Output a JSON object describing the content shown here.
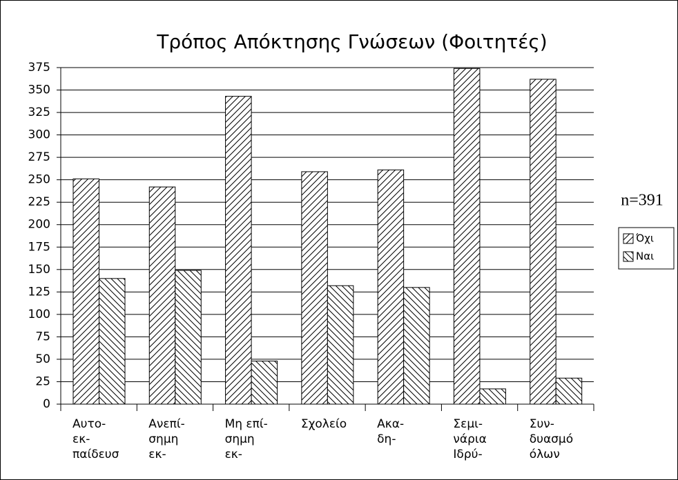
{
  "chart_data": {
    "type": "bar",
    "title": "Τρόπος Απόκτησης Γνώσεων (Φοιτητές)",
    "annotation": "n=391",
    "categories": [
      [
        "Αυτο-",
        "εκ-",
        "παίδευσ"
      ],
      [
        "Ανεπί-",
        "σημη",
        "εκ-"
      ],
      [
        "Μη επί-",
        "σημη",
        "εκ-"
      ],
      [
        "Σχολείο"
      ],
      [
        "Ακα-",
        "δη-"
      ],
      [
        "Σεμι-",
        "νάρια",
        "Ιδρύ-"
      ],
      [
        "Συν-",
        "δυασμό",
        "όλων"
      ]
    ],
    "series": [
      {
        "name": "Όχι",
        "color": "#000000",
        "hatch": "forward",
        "values": [
          251,
          242,
          343,
          259,
          261,
          374,
          362
        ]
      },
      {
        "name": "Ναι",
        "color": "#000000",
        "hatch": "backward",
        "values": [
          140,
          149,
          48,
          132,
          130,
          17,
          29
        ]
      }
    ],
    "ylim": [
      0,
      375
    ],
    "yticks": [
      0,
      25,
      50,
      75,
      100,
      125,
      150,
      175,
      200,
      225,
      250,
      275,
      300,
      325,
      350,
      375
    ],
    "grid": true,
    "legend": "right"
  }
}
